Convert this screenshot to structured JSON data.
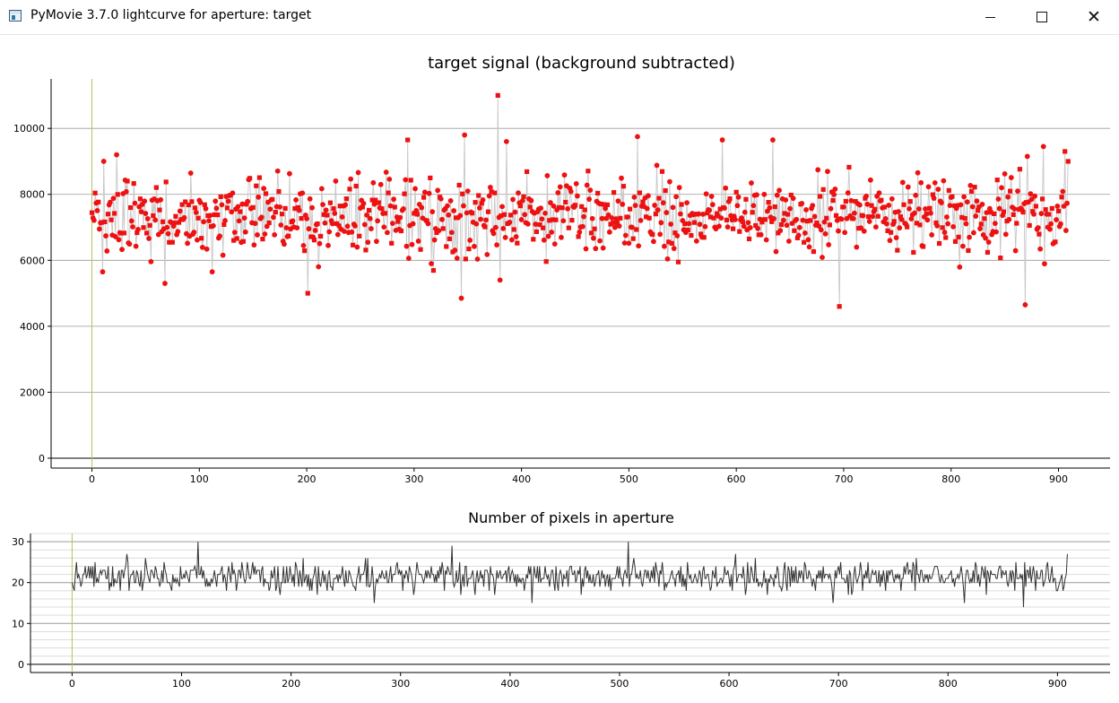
{
  "window": {
    "title": "PyMovie 3.7.0 lightcurve for aperture: target",
    "icon": "app-window-icon",
    "controls": {
      "minimize": "minimize-icon",
      "maximize": "maximize-icon",
      "close": "close-icon"
    }
  },
  "chart_data": [
    {
      "type": "scatter",
      "title": "target signal (background subtracted)",
      "xlabel": "",
      "ylabel": "",
      "xlim": [
        -38,
        948
      ],
      "ylim": [
        -300,
        11500
      ],
      "x_ticks": [
        0,
        100,
        200,
        300,
        400,
        500,
        600,
        700,
        800,
        900
      ],
      "y_ticks": [
        0,
        2000,
        4000,
        6000,
        8000,
        10000
      ],
      "grid": true,
      "legend": "none",
      "marker_color": "#ee1111",
      "line_color": "#c8c8c8",
      "vline_x": 0,
      "vline_color": "#b8c060",
      "n_points": 909,
      "mean": 7350,
      "notable_points": [
        {
          "x": 10,
          "y": 5650
        },
        {
          "x": 11,
          "y": 9000
        },
        {
          "x": 23,
          "y": 9200
        },
        {
          "x": 68,
          "y": 5300
        },
        {
          "x": 112,
          "y": 5650
        },
        {
          "x": 201,
          "y": 5000
        },
        {
          "x": 294,
          "y": 9650
        },
        {
          "x": 344,
          "y": 4850
        },
        {
          "x": 347,
          "y": 9800
        },
        {
          "x": 378,
          "y": 11000
        },
        {
          "x": 380,
          "y": 5400
        },
        {
          "x": 386,
          "y": 9600
        },
        {
          "x": 508,
          "y": 9750
        },
        {
          "x": 587,
          "y": 9650
        },
        {
          "x": 634,
          "y": 9650
        },
        {
          "x": 696,
          "y": 4600
        },
        {
          "x": 869,
          "y": 4650
        },
        {
          "x": 871,
          "y": 9150
        },
        {
          "x": 886,
          "y": 9450
        },
        {
          "x": 906,
          "y": 9300
        },
        {
          "x": 909,
          "y": 9000
        }
      ]
    },
    {
      "type": "line",
      "title": "Number of pixels in aperture",
      "xlabel": "",
      "ylabel": "",
      "xlim": [
        -38,
        948
      ],
      "ylim": [
        -2,
        32
      ],
      "x_ticks": [
        0,
        100,
        200,
        300,
        400,
        500,
        600,
        700,
        800,
        900
      ],
      "y_ticks": [
        0,
        10,
        20,
        30
      ],
      "grid": true,
      "legend": "none",
      "line_color": "#333333",
      "vline_x": 0,
      "vline_color": "#b8c060",
      "n_points": 909,
      "mean": 21.5,
      "notable_points": [
        {
          "x": 0,
          "y": 20
        },
        {
          "x": 115,
          "y": 30
        },
        {
          "x": 276,
          "y": 15
        },
        {
          "x": 347,
          "y": 29
        },
        {
          "x": 420,
          "y": 15
        },
        {
          "x": 508,
          "y": 30
        },
        {
          "x": 695,
          "y": 15
        },
        {
          "x": 815,
          "y": 15
        },
        {
          "x": 869,
          "y": 14
        },
        {
          "x": 909,
          "y": 27
        }
      ]
    }
  ]
}
